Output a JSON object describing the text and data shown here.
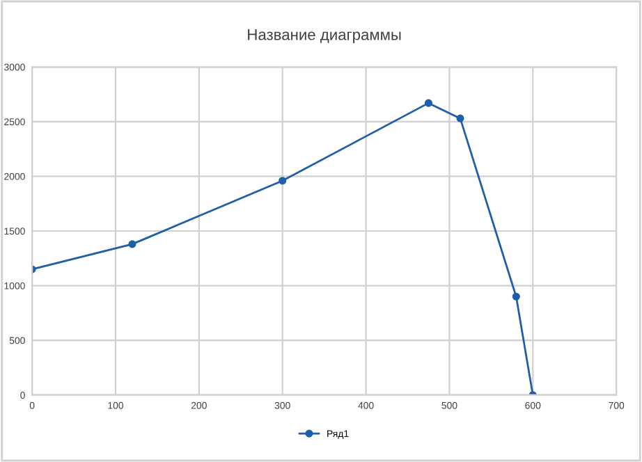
{
  "chart_data": {
    "type": "line",
    "title": "Название диаграммы",
    "xlim": [
      0,
      700
    ],
    "xticks": [
      0,
      100,
      200,
      300,
      400,
      500,
      600,
      700
    ],
    "ylim": [
      0,
      3000
    ],
    "yticks": [
      0,
      500,
      1000,
      1500,
      2000,
      2500,
      3000
    ],
    "grid": true,
    "legend": "bottom",
    "marker": "circle",
    "line_style": "solid",
    "series": [
      {
        "name": "Ряд1",
        "color": "#1f5fa8",
        "x": [
          0,
          120,
          300,
          475,
          513,
          580,
          600
        ],
        "values": [
          1150,
          1380,
          1960,
          2670,
          2530,
          900,
          0
        ]
      }
    ]
  }
}
